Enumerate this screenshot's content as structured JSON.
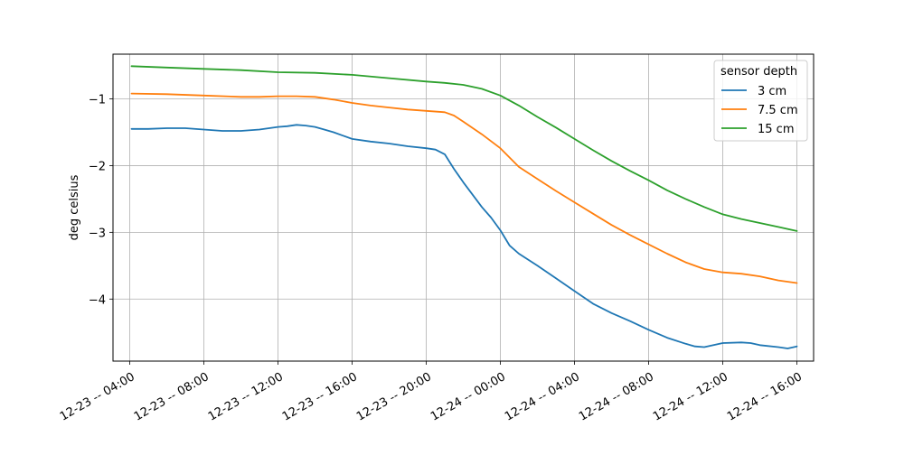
{
  "chart_data": {
    "type": "line",
    "ylabel": "deg celsius",
    "xlabel": "",
    "title": "",
    "ylim": [
      -4.93,
      -0.33
    ],
    "xlim_hours": [
      -0.9,
      36.9
    ],
    "grid": true,
    "legend": {
      "title": "sensor depth",
      "placement": "top-right"
    },
    "yticks": [
      {
        "value": -1,
        "label": "−1"
      },
      {
        "value": -2,
        "label": "−2"
      },
      {
        "value": -3,
        "label": "−3"
      },
      {
        "value": -4,
        "label": "−4"
      }
    ],
    "xticks": [
      {
        "hours": 0,
        "label": "12-23 -- 04:00"
      },
      {
        "hours": 4,
        "label": "12-23 -- 08:00"
      },
      {
        "hours": 8,
        "label": "12-23 -- 12:00"
      },
      {
        "hours": 12,
        "label": "12-23 -- 16:00"
      },
      {
        "hours": 16,
        "label": "12-23 -- 20:00"
      },
      {
        "hours": 20,
        "label": "12-24 -- 00:00"
      },
      {
        "hours": 24,
        "label": "12-24 -- 04:00"
      },
      {
        "hours": 28,
        "label": "12-24 -- 08:00"
      },
      {
        "hours": 32,
        "label": "12-24 -- 12:00"
      },
      {
        "hours": 36,
        "label": "12-24 -- 16:00"
      }
    ],
    "series": [
      {
        "name": "3 cm",
        "color": "#1f77b4",
        "x": [
          0.1,
          1,
          2,
          3,
          4,
          5,
          6,
          7,
          8,
          8.5,
          9,
          9.5,
          10,
          10.5,
          11,
          11.5,
          12,
          13,
          14,
          15,
          16,
          16.5,
          17,
          17.5,
          18,
          19,
          19.5,
          20,
          20.5,
          21,
          22,
          23,
          24,
          25,
          26,
          27,
          28,
          29,
          30,
          30.5,
          31,
          32,
          33,
          33.5,
          34,
          35,
          35.5,
          36
        ],
        "y": [
          -1.45,
          -1.45,
          -1.44,
          -1.44,
          -1.46,
          -1.48,
          -1.48,
          -1.46,
          -1.42,
          -1.41,
          -1.39,
          -1.4,
          -1.42,
          -1.46,
          -1.5,
          -1.55,
          -1.6,
          -1.64,
          -1.67,
          -1.71,
          -1.74,
          -1.76,
          -1.83,
          -2.05,
          -2.25,
          -2.62,
          -2.78,
          -2.97,
          -3.2,
          -3.32,
          -3.5,
          -3.69,
          -3.88,
          -4.07,
          -4.21,
          -4.33,
          -4.46,
          -4.58,
          -4.67,
          -4.71,
          -4.72,
          -4.66,
          -4.65,
          -4.66,
          -4.69,
          -4.72,
          -4.74,
          -4.71
        ]
      },
      {
        "name": "7.5 cm",
        "color": "#ff7f0e",
        "x": [
          0.1,
          2,
          4,
          6,
          7,
          8,
          9,
          10,
          11,
          12,
          13,
          14,
          15,
          16,
          17,
          17.5,
          18,
          19,
          20,
          21,
          22,
          23,
          24,
          25,
          26,
          27,
          28,
          29,
          30,
          31,
          32,
          33,
          34,
          35,
          36
        ],
        "y": [
          -0.92,
          -0.93,
          -0.95,
          -0.97,
          -0.97,
          -0.96,
          -0.96,
          -0.97,
          -1.01,
          -1.06,
          -1.1,
          -1.13,
          -1.16,
          -1.18,
          -1.2,
          -1.25,
          -1.34,
          -1.53,
          -1.74,
          -2.02,
          -2.2,
          -2.38,
          -2.55,
          -2.72,
          -2.89,
          -3.04,
          -3.18,
          -3.32,
          -3.45,
          -3.55,
          -3.6,
          -3.62,
          -3.66,
          -3.72,
          -3.76
        ]
      },
      {
        "name": "15 cm",
        "color": "#2ca02c",
        "x": [
          0.1,
          2,
          4,
          6,
          8,
          10,
          12,
          14,
          16,
          17,
          18,
          19,
          20,
          21,
          22,
          23,
          24,
          25,
          26,
          27,
          28,
          29,
          30,
          31,
          32,
          33,
          34,
          35,
          36
        ],
        "y": [
          -0.51,
          -0.53,
          -0.55,
          -0.57,
          -0.6,
          -0.61,
          -0.64,
          -0.69,
          -0.74,
          -0.76,
          -0.79,
          -0.85,
          -0.95,
          -1.1,
          -1.27,
          -1.43,
          -1.6,
          -1.77,
          -1.93,
          -2.08,
          -2.22,
          -2.37,
          -2.5,
          -2.62,
          -2.73,
          -2.8,
          -2.86,
          -2.92,
          -2.98
        ]
      }
    ]
  }
}
